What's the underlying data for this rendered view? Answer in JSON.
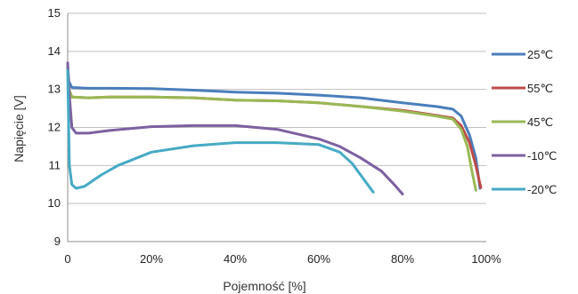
{
  "chart_data": {
    "type": "line",
    "xlabel": "Pojemność [%]",
    "ylabel": "Napięcie [V]",
    "xlim": [
      0,
      100
    ],
    "ylim": [
      9,
      15
    ],
    "x_ticks": [
      {
        "value": 0,
        "label": "0"
      },
      {
        "value": 20,
        "label": "20%"
      },
      {
        "value": 40,
        "label": "40%"
      },
      {
        "value": 60,
        "label": "60%"
      },
      {
        "value": 80,
        "label": "80%"
      },
      {
        "value": 100,
        "label": "100%"
      }
    ],
    "y_ticks": [
      9,
      10,
      11,
      12,
      13,
      14,
      15
    ],
    "grid": "horizontal",
    "legend_position": "right",
    "series": [
      {
        "name": "25℃",
        "color": "#4a7ebb",
        "points": [
          [
            0,
            13.6
          ],
          [
            0.3,
            13.2
          ],
          [
            1,
            13.05
          ],
          [
            5,
            13.03
          ],
          [
            10,
            13.03
          ],
          [
            20,
            13.02
          ],
          [
            30,
            12.98
          ],
          [
            40,
            12.93
          ],
          [
            50,
            12.9
          ],
          [
            60,
            12.85
          ],
          [
            70,
            12.78
          ],
          [
            80,
            12.65
          ],
          [
            88,
            12.55
          ],
          [
            92,
            12.48
          ],
          [
            94,
            12.3
          ],
          [
            96,
            11.8
          ],
          [
            97.5,
            11.2
          ],
          [
            98.5,
            10.4
          ]
        ]
      },
      {
        "name": "55℃",
        "color": "#be4b48",
        "points": [
          [
            0,
            13.5
          ],
          [
            0.3,
            13.0
          ],
          [
            1,
            12.8
          ],
          [
            5,
            12.78
          ],
          [
            10,
            12.8
          ],
          [
            20,
            12.8
          ],
          [
            30,
            12.78
          ],
          [
            40,
            12.72
          ],
          [
            50,
            12.7
          ],
          [
            60,
            12.65
          ],
          [
            70,
            12.55
          ],
          [
            80,
            12.45
          ],
          [
            88,
            12.32
          ],
          [
            92,
            12.25
          ],
          [
            94,
            12.05
          ],
          [
            96,
            11.6
          ],
          [
            97.5,
            11.0
          ],
          [
            98.7,
            10.42
          ]
        ]
      },
      {
        "name": "45℃",
        "color": "#98b954",
        "points": [
          [
            0,
            13.55
          ],
          [
            0.3,
            13.0
          ],
          [
            1,
            12.8
          ],
          [
            5,
            12.78
          ],
          [
            10,
            12.8
          ],
          [
            20,
            12.8
          ],
          [
            30,
            12.78
          ],
          [
            40,
            12.72
          ],
          [
            50,
            12.7
          ],
          [
            60,
            12.65
          ],
          [
            70,
            12.55
          ],
          [
            80,
            12.43
          ],
          [
            88,
            12.3
          ],
          [
            92,
            12.22
          ],
          [
            94,
            11.95
          ],
          [
            95.5,
            11.5
          ],
          [
            96.5,
            10.9
          ],
          [
            97.5,
            10.35
          ]
        ]
      },
      {
        "name": "-10℃",
        "color": "#7d60a0",
        "points": [
          [
            0,
            13.7
          ],
          [
            0.3,
            13.0
          ],
          [
            1,
            12.0
          ],
          [
            2,
            11.85
          ],
          [
            5,
            11.85
          ],
          [
            10,
            11.92
          ],
          [
            20,
            12.02
          ],
          [
            30,
            12.05
          ],
          [
            40,
            12.05
          ],
          [
            50,
            11.95
          ],
          [
            60,
            11.7
          ],
          [
            65,
            11.5
          ],
          [
            70,
            11.2
          ],
          [
            75,
            10.85
          ],
          [
            78,
            10.5
          ],
          [
            80,
            10.25
          ]
        ]
      },
      {
        "name": "-20℃",
        "color": "#46aac5",
        "points": [
          [
            0,
            13.5
          ],
          [
            0.4,
            11.0
          ],
          [
            1,
            10.5
          ],
          [
            2,
            10.4
          ],
          [
            4,
            10.45
          ],
          [
            8,
            10.75
          ],
          [
            12,
            11.0
          ],
          [
            20,
            11.35
          ],
          [
            30,
            11.52
          ],
          [
            40,
            11.6
          ],
          [
            50,
            11.6
          ],
          [
            60,
            11.55
          ],
          [
            65,
            11.35
          ],
          [
            68,
            11.05
          ],
          [
            71,
            10.6
          ],
          [
            73,
            10.3
          ]
        ]
      }
    ]
  }
}
